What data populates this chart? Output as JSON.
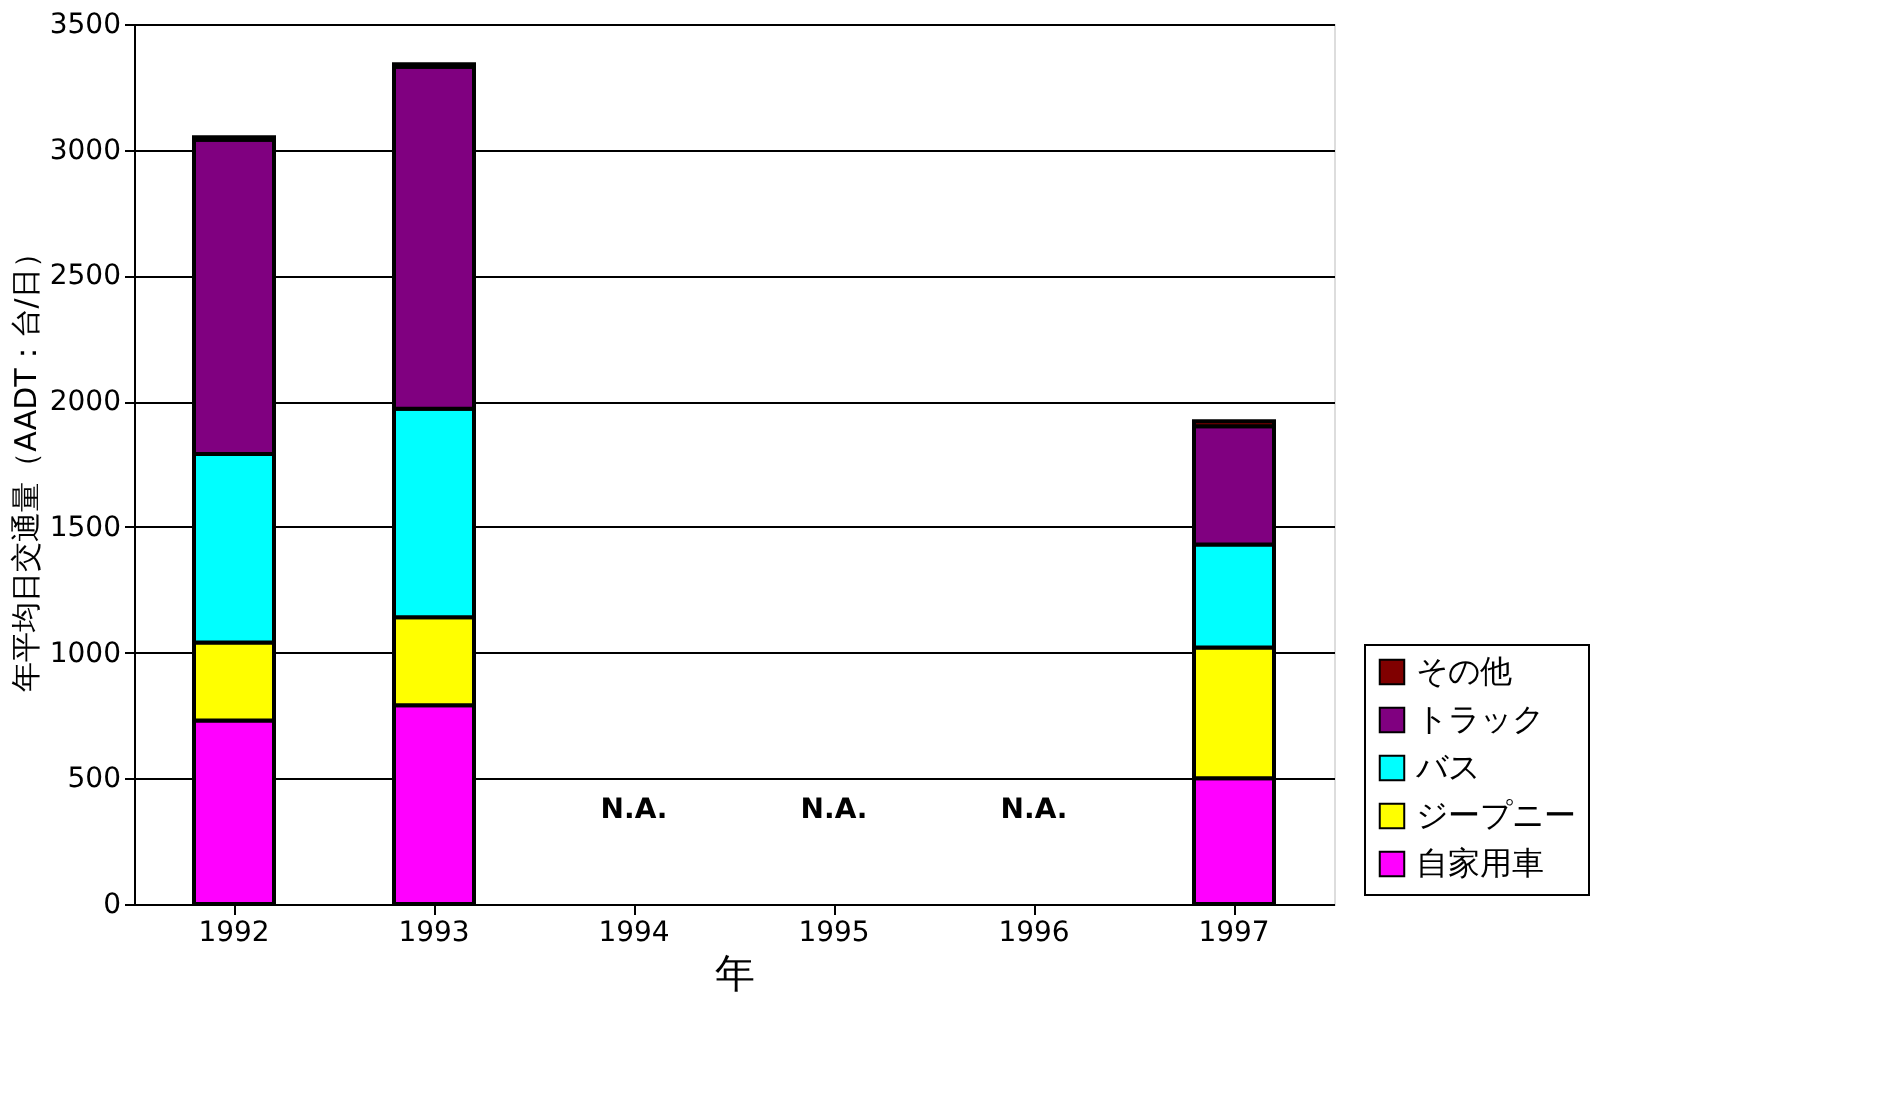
{
  "chart_data": {
    "type": "bar",
    "stacked": true,
    "xlabel": "年",
    "ylabel": "年平均日交通量（AADT：台/日）",
    "categories": [
      "1992",
      "1993",
      "1994",
      "1995",
      "1996",
      "1997"
    ],
    "series": [
      {
        "name": "自家用車",
        "color": "#ff00ff",
        "values": [
          730,
          790,
          null,
          null,
          null,
          500
        ]
      },
      {
        "name": "ジープニー",
        "color": "#ffff00",
        "values": [
          310,
          350,
          null,
          null,
          null,
          520
        ]
      },
      {
        "name": "バス",
        "color": "#00ffff",
        "values": [
          750,
          830,
          null,
          null,
          null,
          410
        ]
      },
      {
        "name": "トラック",
        "color": "#800080",
        "values": [
          1250,
          1360,
          null,
          null,
          null,
          470
        ]
      },
      {
        "name": "その他",
        "color": "#800000",
        "values": [
          10,
          10,
          null,
          null,
          null,
          20
        ]
      }
    ],
    "annotations": [
      "N.A.",
      "N.A.",
      "N.A."
    ],
    "ylim": [
      0,
      3500
    ],
    "yticks": [
      0,
      500,
      1000,
      1500,
      2000,
      2500,
      3000,
      3500
    ],
    "grid": "y",
    "legend": "bottom right"
  }
}
